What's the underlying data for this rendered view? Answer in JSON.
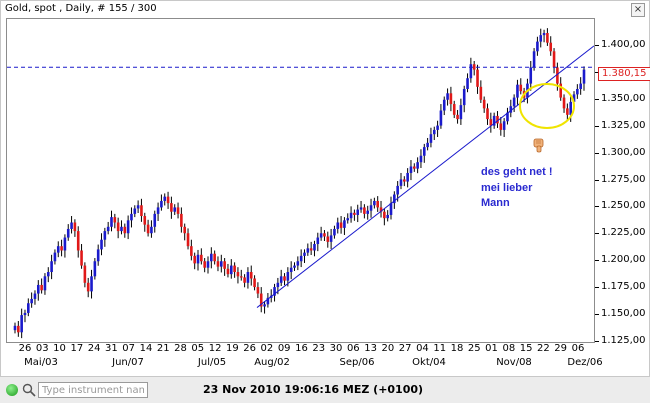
{
  "chart_header": "Gold, spot , Daily, # 155 / 300",
  "close_glyph": "×",
  "price_tag": "1.380,15",
  "annotation_lines": [
    "des geht net !",
    "mei  lieber",
    "Mann"
  ],
  "search": {
    "placeholder": "Type instrument name"
  },
  "status_time": "23 Nov 2010 19:06:16  MEZ (+0100)",
  "colors": {
    "up": "#1a1acc",
    "down": "#e01818",
    "hline": "#1a1acc",
    "trend": "#1a1acc",
    "circle": "#f0e400"
  },
  "chart_data": {
    "type": "candlestick",
    "instrument": "Gold, spot",
    "period": "Daily",
    "ylim": [
      1.125,
      1.425
    ],
    "y_ticks": [
      "1.400,00",
      "1.375,00",
      "1.350,00",
      "1.325,00",
      "1.300,00",
      "1.275,00",
      "1.250,00",
      "1.225,00",
      "1.200,00",
      "1.175,00",
      "1.150,00",
      "1.125,00"
    ],
    "x_day_labels": [
      "26",
      "03",
      "10",
      "17",
      "24",
      "31",
      "07",
      "14",
      "21",
      "28",
      "05",
      "12",
      "19",
      "26",
      "02",
      "09",
      "16",
      "23",
      "30",
      "06",
      "13",
      "20",
      "27",
      "04",
      "11",
      "18",
      "25",
      "01",
      "08",
      "15",
      "22",
      "29",
      "06"
    ],
    "x_month_labels": [
      "Mai/03",
      "Jun/07",
      "Jul/05",
      "Aug/02",
      "Sep/06",
      "Okt/04",
      "Nov/08",
      "Dez/06"
    ],
    "horizontal_line": 1.38015,
    "closes": [
      1.14,
      1.134,
      1.15,
      1.152,
      1.161,
      1.165,
      1.17,
      1.178,
      1.173,
      1.186,
      1.19,
      1.2,
      1.208,
      1.214,
      1.21,
      1.222,
      1.23,
      1.236,
      1.228,
      1.21,
      1.196,
      1.18,
      1.172,
      1.186,
      1.2,
      1.211,
      1.22,
      1.228,
      1.232,
      1.241,
      1.236,
      1.228,
      1.232,
      1.226,
      1.238,
      1.244,
      1.249,
      1.252,
      1.242,
      1.234,
      1.226,
      1.232,
      1.244,
      1.25,
      1.256,
      1.26,
      1.254,
      1.246,
      1.25,
      1.244,
      1.232,
      1.226,
      1.214,
      1.205,
      1.198,
      1.206,
      1.2,
      1.194,
      1.2,
      1.207,
      1.2,
      1.195,
      1.2,
      1.193,
      1.188,
      1.196,
      1.19,
      1.186,
      1.185,
      1.18,
      1.19,
      1.184,
      1.176,
      1.17,
      1.158,
      1.16,
      1.166,
      1.168,
      1.176,
      1.18,
      1.186,
      1.182,
      1.19,
      1.194,
      1.196,
      1.2,
      1.205,
      1.208,
      1.212,
      1.21,
      1.216,
      1.222,
      1.226,
      1.223,
      1.218,
      1.224,
      1.23,
      1.236,
      1.231,
      1.238,
      1.24,
      1.245,
      1.243,
      1.248,
      1.25,
      1.244,
      1.247,
      1.252,
      1.256,
      1.25,
      1.246,
      1.24,
      1.243,
      1.254,
      1.262,
      1.27,
      1.276,
      1.274,
      1.282,
      1.288,
      1.286,
      1.292,
      1.298,
      1.306,
      1.31,
      1.318,
      1.322,
      1.326,
      1.34,
      1.35,
      1.356,
      1.346,
      1.336,
      1.332,
      1.345,
      1.36,
      1.37,
      1.383,
      1.378,
      1.362,
      1.35,
      1.342,
      1.332,
      1.326,
      1.335,
      1.328,
      1.322,
      1.33,
      1.338,
      1.344,
      1.352,
      1.364,
      1.358,
      1.352,
      1.365,
      1.38,
      1.395,
      1.404,
      1.41,
      1.412,
      1.403,
      1.395,
      1.38,
      1.365,
      1.352,
      1.342,
      1.336,
      1.348,
      1.355,
      1.36,
      1.365,
      1.378
    ]
  }
}
